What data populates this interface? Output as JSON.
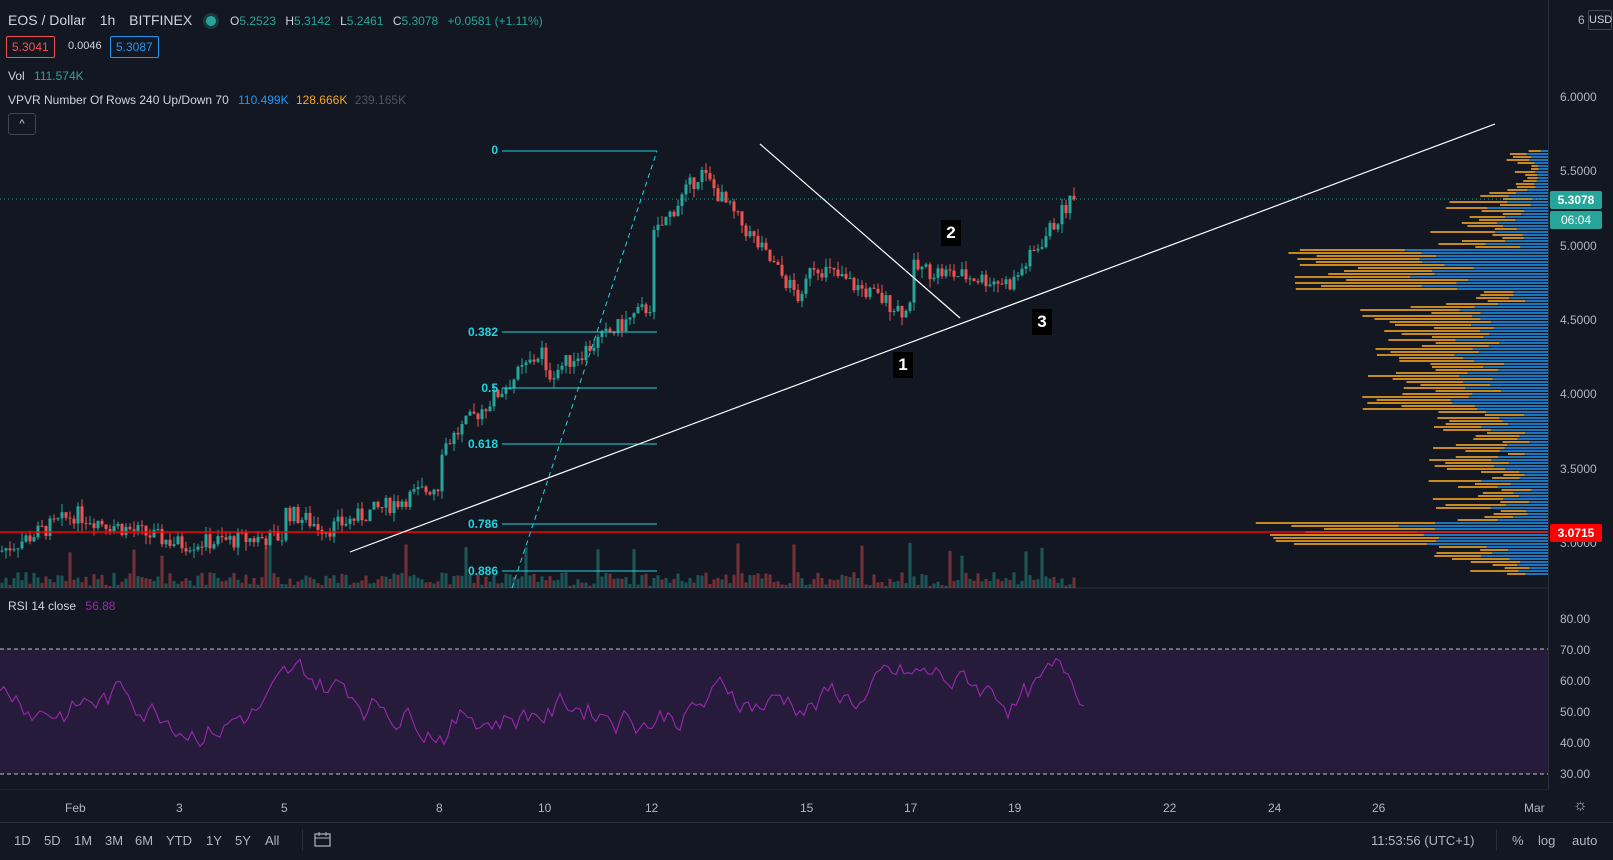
{
  "header": {
    "symbol": "EOS / Dollar",
    "interval": "1h",
    "exchange": "BITFINEX",
    "ohlc": {
      "o_label": "O",
      "o": "5.2523",
      "h_label": "H",
      "h": "5.3142",
      "l_label": "L",
      "l": "5.2461",
      "c_label": "C",
      "c": "5.3078",
      "change": "+0.0581 (+1.11%)"
    },
    "sell": "5.3041",
    "spread": "0.0046",
    "buy": "5.3087"
  },
  "indicators": {
    "vol_label": "Vol",
    "vol_value": "111.574K",
    "vpvr_label": "VPVR Number Of Rows 240 Up/Down 70",
    "vpvr_up": "110.499K",
    "vpvr_down": "128.666K",
    "vpvr_total": "239.165K",
    "collapse_glyph": "^"
  },
  "rsi": {
    "label": "RSI 14 close",
    "value": "56.88"
  },
  "price_axis": {
    "currency": "USD",
    "labels": [
      "6",
      "6.0000",
      "5.5000",
      "5.0000",
      "4.5000",
      "4.0000",
      "3.5000",
      "3.0000"
    ],
    "last_price": "5.3078",
    "countdown": "06:04",
    "support": "3.0715"
  },
  "rsi_axis": [
    "80.00",
    "70.00",
    "60.00",
    "50.00",
    "40.00",
    "30.00"
  ],
  "time_axis": [
    "Feb",
    "3",
    "5",
    "8",
    "10",
    "12",
    "15",
    "17",
    "19",
    "22",
    "24",
    "26",
    "Mar"
  ],
  "fib_labels": [
    "0",
    "0.382",
    "0.5",
    "0.618",
    "0.786",
    "0.886"
  ],
  "annotations": [
    "1",
    "2",
    "3"
  ],
  "bottom": {
    "ranges": [
      "1D",
      "5D",
      "1M",
      "3M",
      "6M",
      "YTD",
      "1Y",
      "5Y",
      "All"
    ],
    "clock": "11:53:56 (UTC+1)",
    "percent": "%",
    "log": "log",
    "auto": "auto"
  },
  "colors": {
    "up": "#26a69a",
    "down": "#ef5350",
    "fib": "#22d3e0",
    "support": "#ff0000",
    "rsi": "#9c27b0",
    "vp_up": "#2196f3",
    "vp_down": "#f5a623"
  },
  "chart_data": {
    "type": "line",
    "title": "EOS / Dollar, 1h, BITFINEX",
    "x_ticks": [
      "Feb",
      "3",
      "5",
      "8",
      "10",
      "12",
      "15",
      "17",
      "19",
      "22",
      "24",
      "26",
      "Mar"
    ],
    "approx_close_path": [
      {
        "x": "Feb 1",
        "y": 2.95
      },
      {
        "x": "Feb 2",
        "y": 3.2
      },
      {
        "x": "Feb 3",
        "y": 3.0
      },
      {
        "x": "Feb 5",
        "y": 3.05
      },
      {
        "x": "Feb 6",
        "y": 3.25
      },
      {
        "x": "Feb 7",
        "y": 3.1
      },
      {
        "x": "Feb 8",
        "y": 3.4
      },
      {
        "x": "Feb 9",
        "y": 3.6
      },
      {
        "x": "Feb 10",
        "y": 4.3
      },
      {
        "x": "Feb 11",
        "y": 4.1
      },
      {
        "x": "Feb 12",
        "y": 4.6
      },
      {
        "x": "Feb 13",
        "y": 5.0
      },
      {
        "x": "Feb 14",
        "y": 5.5
      },
      {
        "x": "Feb 15",
        "y": 4.6
      },
      {
        "x": "Feb 16",
        "y": 4.9
      },
      {
        "x": "Feb 17",
        "y": 4.55
      },
      {
        "x": "Feb 18",
        "y": 4.85
      },
      {
        "x": "Feb 19",
        "y": 4.75
      },
      {
        "x": "Feb 20",
        "y": 5.3
      }
    ],
    "ylim": [
      2.8,
      6.1
    ],
    "rsi_ylim": [
      25,
      85
    ],
    "rsi_bands": [
      30,
      70
    ]
  }
}
